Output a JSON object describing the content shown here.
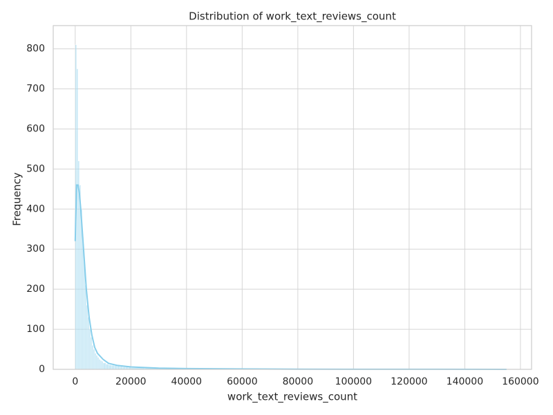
{
  "chart_data": {
    "type": "histogram",
    "title": "Distribution of work_text_reviews_count",
    "x_label": "work_text_reviews_count",
    "y_label": "Frequency",
    "bins": [
      0,
      500,
      1000,
      1500,
      2000,
      2500,
      3000,
      3500,
      4000,
      4500,
      5000,
      5500,
      6000,
      6500,
      7000,
      7500,
      8000,
      8500,
      9000,
      9500,
      10000,
      11000,
      12000,
      13000,
      14000,
      15000,
      16000,
      17000,
      18000,
      19000,
      20000,
      25000,
      30000,
      40000,
      50000,
      60000,
      80000,
      100000,
      120000,
      140000,
      155000
    ],
    "counts": [
      810,
      750,
      520,
      460,
      400,
      330,
      270,
      210,
      160,
      130,
      100,
      80,
      60,
      50,
      40,
      35,
      30,
      25,
      22,
      20,
      16,
      13,
      11,
      10,
      9,
      8,
      7,
      6,
      6,
      5,
      4,
      3,
      3,
      2,
      2,
      1,
      1,
      1,
      1,
      1
    ],
    "color": "#87ceeb",
    "kde": {
      "x": [
        0,
        500,
        1000,
        1500,
        2000,
        3000,
        4000,
        5000,
        6000,
        7000,
        8000,
        10000,
        12000,
        15000,
        20000,
        30000,
        40000,
        60000,
        80000,
        100000,
        130000,
        155000
      ],
      "values": [
        320,
        460,
        460,
        440,
        400,
        300,
        200,
        130,
        85,
        55,
        40,
        25,
        15,
        10,
        6,
        3,
        2,
        1,
        0.5,
        0.3,
        0.2,
        0.1
      ]
    },
    "xlim": [
      -7900,
      164000
    ],
    "ylim": [
      0,
      858
    ],
    "xticks": [
      0,
      20000,
      40000,
      60000,
      80000,
      100000,
      120000,
      140000,
      160000
    ],
    "yticks": [
      0,
      100,
      200,
      300,
      400,
      500,
      600,
      700,
      800
    ],
    "grid": true
  }
}
